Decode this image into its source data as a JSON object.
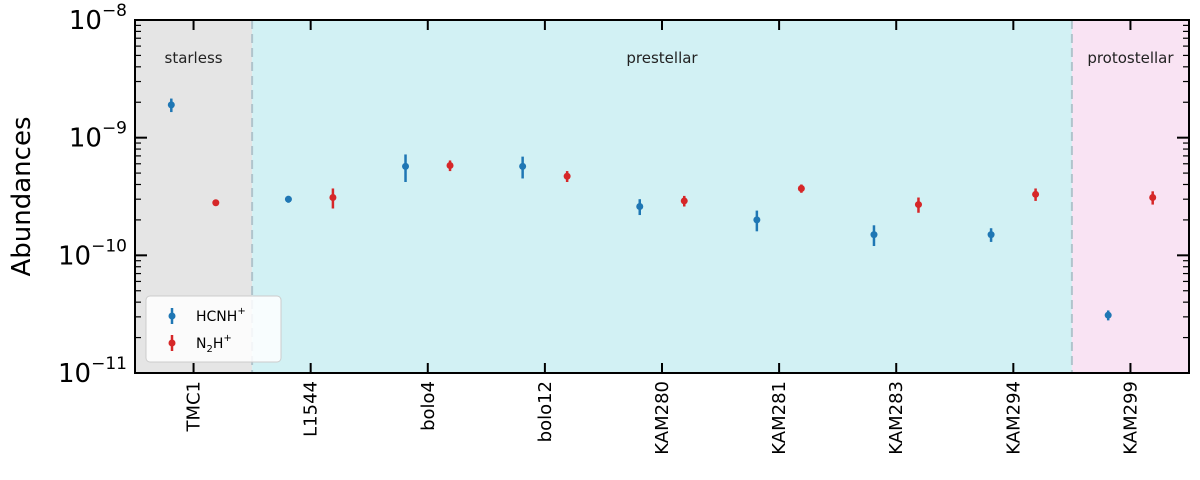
{
  "chart_data": {
    "type": "scatter",
    "ylabel": "Abundances",
    "yscale": "log",
    "ylim": [
      1e-11,
      1e-08
    ],
    "y_ticks": [
      {
        "value": 1e-08,
        "base": "10",
        "exp": "−8"
      },
      {
        "value": 1e-09,
        "base": "10",
        "exp": "−9"
      },
      {
        "value": 1e-10,
        "base": "10",
        "exp": "−10"
      },
      {
        "value": 1e-11,
        "base": "10",
        "exp": "−11"
      }
    ],
    "categories": [
      "TMC1",
      "L1544",
      "bolo4",
      "bolo12",
      "KAM280",
      "KAM281",
      "KAM283",
      "KAM294",
      "KAM299"
    ],
    "regions": [
      {
        "label": "starless",
        "start": 0,
        "end": 0,
        "color": "#e5e5e5"
      },
      {
        "label": "prestellar",
        "start": 1,
        "end": 7,
        "color": "#d2f1f4"
      },
      {
        "label": "protostellar",
        "start": 8,
        "end": 8,
        "color": "#f9e3f3"
      }
    ],
    "series": [
      {
        "name_main": "HCNH",
        "name_sup": "+",
        "color": "#1f77b4",
        "offset": -0.19,
        "values": [
          1.9e-09,
          3e-10,
          5.7e-10,
          5.7e-10,
          2.6e-10,
          2e-10,
          1.5e-10,
          1.5e-10,
          3.1e-11
        ],
        "err_low": [
          2.5e-10,
          2e-11,
          1.5e-10,
          1.2e-10,
          4e-11,
          4e-11,
          3e-11,
          2e-11,
          3e-12
        ],
        "err_high": [
          2.5e-10,
          2e-11,
          1.5e-10,
          1.2e-10,
          4e-11,
          4e-11,
          3e-11,
          2e-11,
          3e-12
        ]
      },
      {
        "name_main": "N",
        "name_sub": "2",
        "name_main2": "H",
        "name_sup": "+",
        "color": "#d62728",
        "offset": 0.19,
        "values": [
          2.8e-10,
          3.1e-10,
          5.8e-10,
          4.7e-10,
          2.9e-10,
          3.7e-10,
          2.7e-10,
          3.3e-10,
          3.1e-10
        ],
        "err_low": [
          1e-11,
          6e-11,
          6e-11,
          5e-11,
          3e-11,
          3e-11,
          4e-11,
          4e-11,
          4e-11
        ],
        "err_high": [
          1e-11,
          6e-11,
          6e-11,
          5e-11,
          3e-11,
          3e-11,
          4e-11,
          4e-11,
          4e-11
        ]
      }
    ],
    "legend": "lower-left",
    "grid": false
  }
}
